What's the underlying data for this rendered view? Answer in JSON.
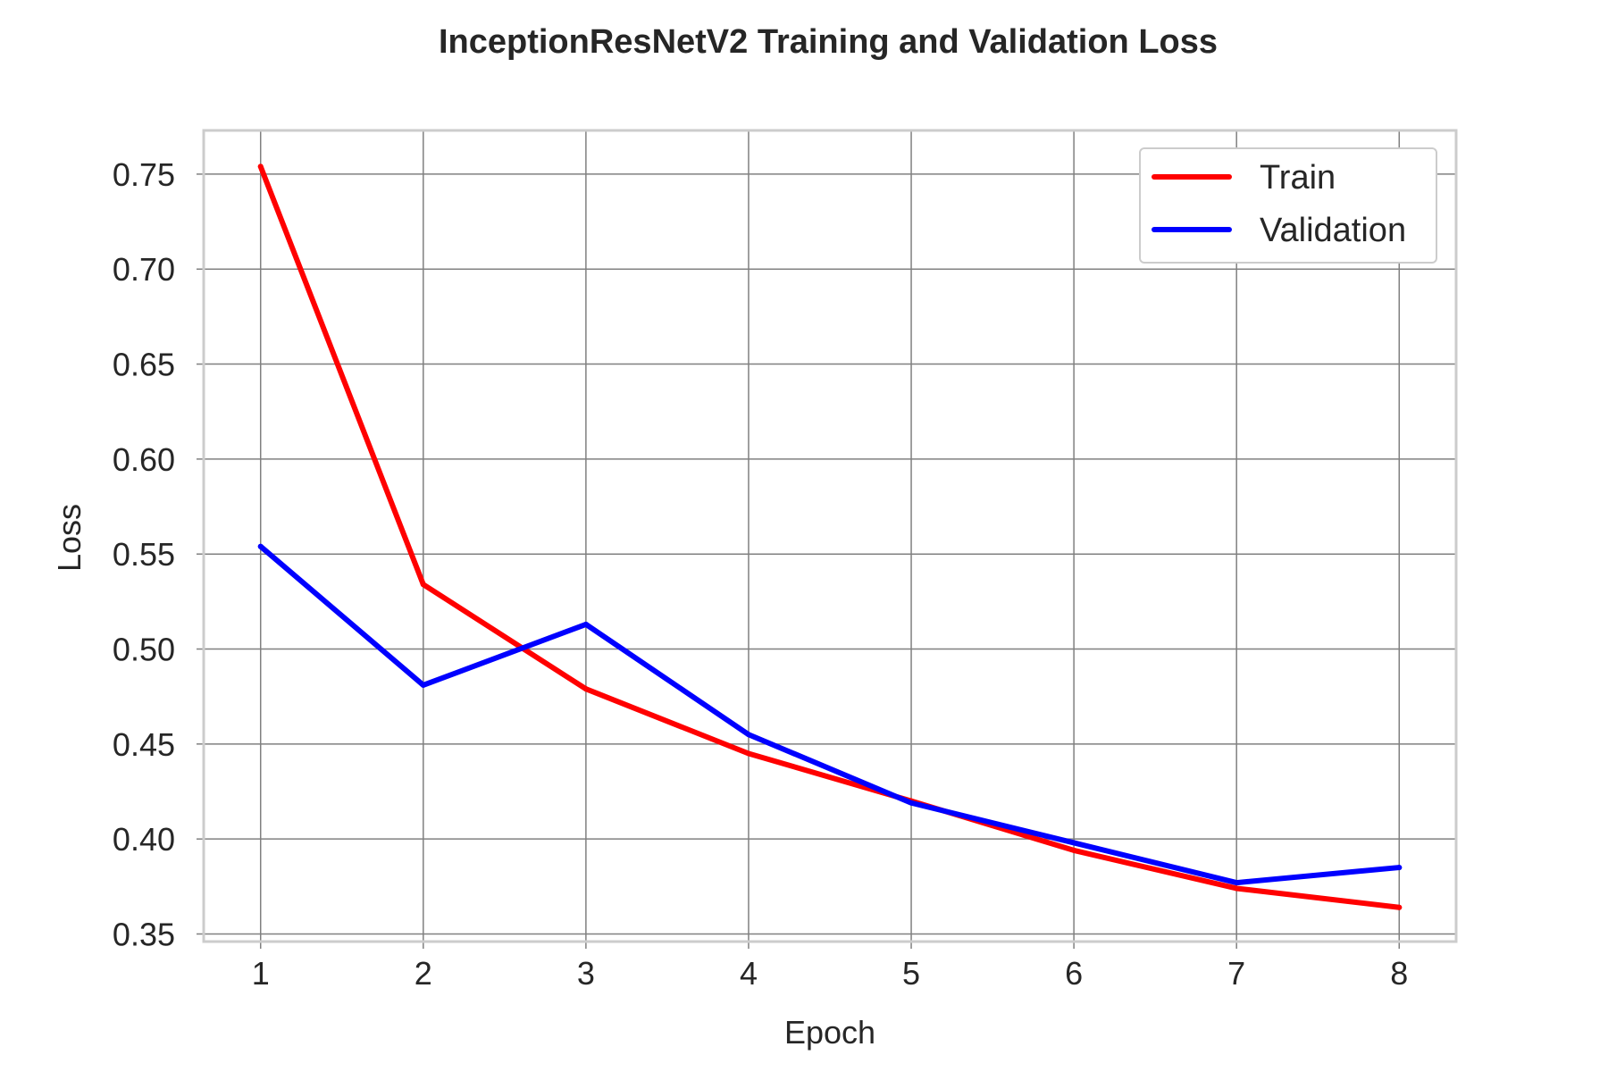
{
  "chart_data": {
    "type": "line",
    "title": "InceptionResNetV2 Training and Validation Loss",
    "xlabel": "Epoch",
    "ylabel": "Loss",
    "x": [
      1,
      2,
      3,
      4,
      5,
      6,
      7,
      8
    ],
    "x_tick_labels": [
      "1",
      "2",
      "3",
      "4",
      "5",
      "6",
      "7",
      "8"
    ],
    "y_ticks": [
      0.35,
      0.4,
      0.45,
      0.5,
      0.55,
      0.6,
      0.65,
      0.7,
      0.75
    ],
    "y_tick_labels": [
      "0.35",
      "0.40",
      "0.45",
      "0.50",
      "0.55",
      "0.60",
      "0.65",
      "0.70",
      "0.75"
    ],
    "xlim": [
      0.65,
      8.35
    ],
    "ylim": [
      0.346,
      0.773
    ],
    "grid": true,
    "legend_position": "upper right",
    "series": [
      {
        "name": "Train",
        "color": "#ff0000",
        "values": [
          0.754,
          0.534,
          0.479,
          0.445,
          0.42,
          0.394,
          0.374,
          0.364
        ]
      },
      {
        "name": "Validation",
        "color": "#0000ff",
        "values": [
          0.554,
          0.481,
          0.513,
          0.455,
          0.419,
          0.398,
          0.377,
          0.385
        ]
      }
    ]
  }
}
